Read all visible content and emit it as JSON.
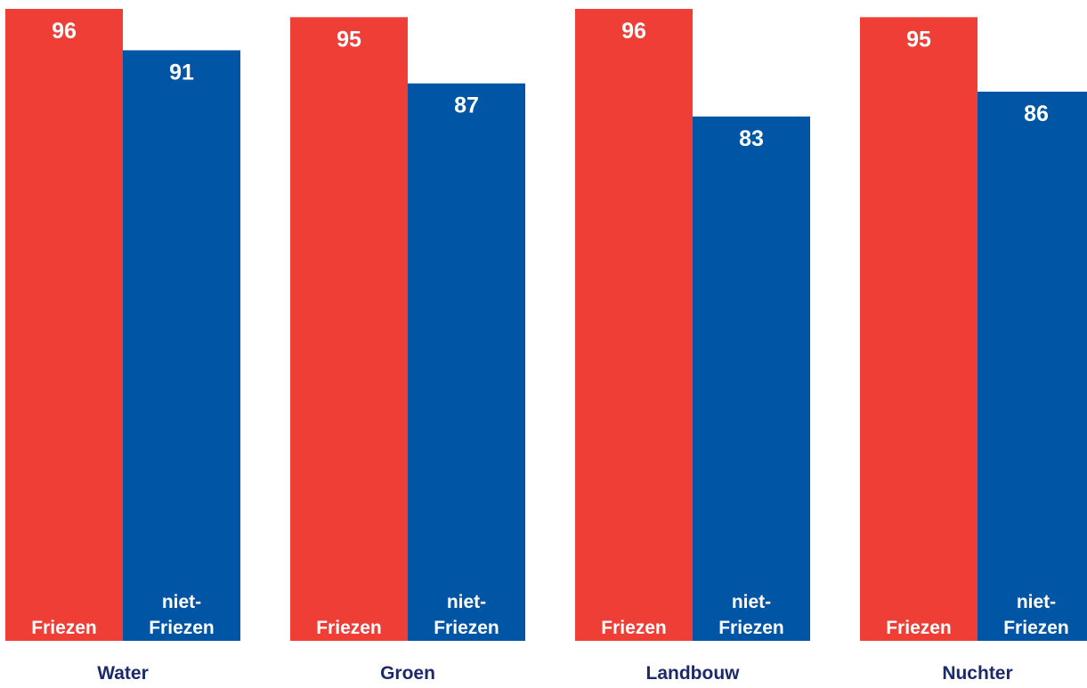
{
  "chart_data": {
    "type": "bar",
    "categories": [
      "Water",
      "Groen",
      "Landbouw",
      "Nuchter"
    ],
    "series": [
      {
        "name": "Friezen",
        "label_lines": [
          "Friezen"
        ],
        "values": [
          96,
          95,
          96,
          95
        ],
        "color": "#ee3e36"
      },
      {
        "name": "niet-Friezen",
        "label_lines": [
          "niet-",
          "Friezen"
        ],
        "values": [
          91,
          87,
          83,
          86
        ],
        "color": "#0055a5"
      }
    ],
    "title": "",
    "xlabel": "",
    "ylabel": "",
    "ylim": [
      0,
      100
    ],
    "grid": false,
    "legend": "none",
    "label_color": "#1c2a6b"
  }
}
